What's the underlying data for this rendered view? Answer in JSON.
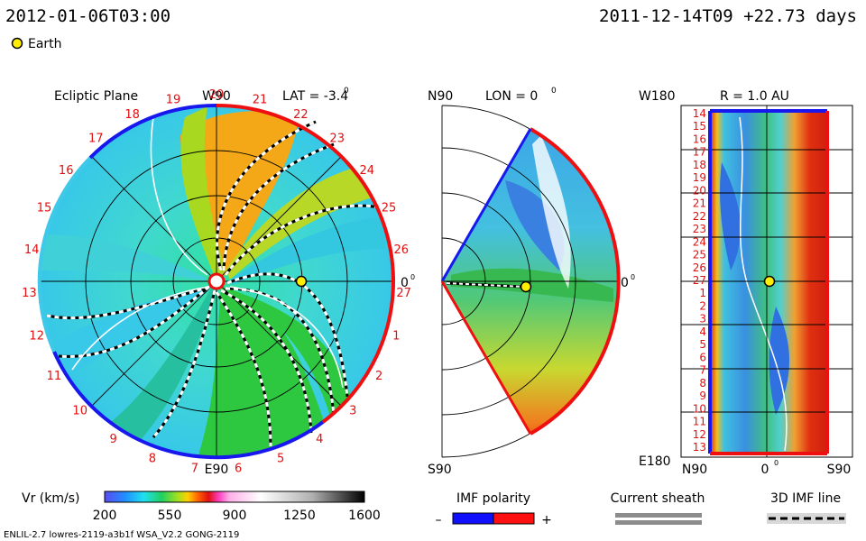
{
  "header": {
    "timestamp": "2012-01-06T03:00",
    "run_info": "2011-12-14T09 +22.73 days",
    "legend_earth": "Earth"
  },
  "footer": {
    "model": "ENLIL-2.7 lowres-2119-a3b1f WSA_V2.2 GONG-2119"
  },
  "colors": {
    "earth": "#ffee00",
    "polarity_neg": "#1010ff",
    "polarity_pos": "#ff1010",
    "sheath": "#8c8c8c"
  },
  "chart_data": [
    {
      "type": "heatmap",
      "panel": "ecliptic-plane",
      "title": "Ecliptic Plane",
      "subtitle": "LAT = -3.4",
      "top_label": "W90",
      "bottom_label": "E90",
      "right_label": "0",
      "sector_labels": [
        "20",
        "21",
        "22",
        "23",
        "24",
        "25",
        "26",
        "27",
        "1",
        "2",
        "3",
        "4",
        "5",
        "6",
        "7",
        "8",
        "9",
        "10",
        "11",
        "12",
        "13",
        "14",
        "15",
        "16",
        "17",
        "18",
        "19"
      ],
      "earth_position_au": 1.0
    },
    {
      "type": "heatmap",
      "panel": "meridional-plane",
      "subtitle": "LON = 0",
      "top_label": "N90",
      "bottom_label": "S90",
      "right_label": "0"
    },
    {
      "type": "heatmap",
      "panel": "r-1au-map",
      "subtitle": "R = 1.0 AU",
      "top_label": "W180",
      "bottom_label": "E180",
      "x_ticks": [
        "N90",
        "0",
        "S90"
      ],
      "y_ticks": [
        "14",
        "15",
        "16",
        "17",
        "18",
        "19",
        "20",
        "21",
        "22",
        "23",
        "24",
        "25",
        "26",
        "27",
        "1",
        "2",
        "3",
        "4",
        "5",
        "6",
        "7",
        "8",
        "9",
        "10",
        "11",
        "12",
        "13"
      ]
    },
    {
      "type": "colorbar",
      "label": "Vr (km/s)",
      "range": [
        200,
        1600
      ],
      "ticks": [
        "200",
        "550",
        "900",
        "1250",
        "1600"
      ]
    }
  ],
  "legends": {
    "imf_polarity": {
      "title": "IMF polarity",
      "neg": "–",
      "pos": "+"
    },
    "current_sheath": {
      "title": "Current sheath"
    },
    "imf_line": {
      "title": "3D IMF line"
    }
  }
}
